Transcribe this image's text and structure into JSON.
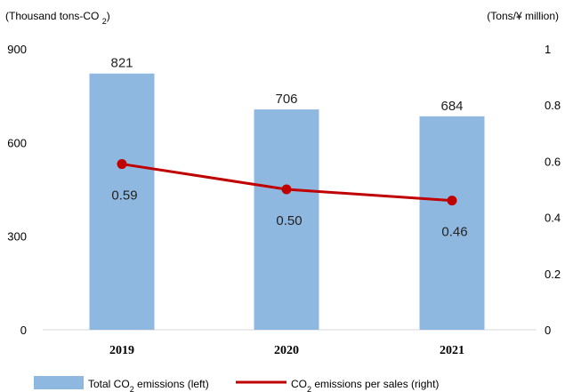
{
  "chart_data": {
    "type": "bar",
    "categories": [
      "2019",
      "2020",
      "2021"
    ],
    "series": [
      {
        "name": "Total CO2 emissions (left)",
        "kind": "bar",
        "axis": "left",
        "values": [
          821,
          706,
          684
        ],
        "labels": [
          "821",
          "706",
          "684"
        ],
        "color": "#8fb8e0"
      },
      {
        "name": "CO2 emissions per sales (right)",
        "kind": "line",
        "axis": "right",
        "values": [
          0.59,
          0.5,
          0.46
        ],
        "labels": [
          "0.59",
          "0.50",
          "0.46"
        ],
        "color": "#c00000"
      }
    ],
    "ylabel_left": "(Thousand tons-CO2)",
    "ylabel_right": "(Tons/¥ million)",
    "ylim_left": [
      0,
      900
    ],
    "ylim_right": [
      0,
      1
    ],
    "yticks_left": [
      "0",
      "300",
      "600",
      "900"
    ],
    "yticks_right": [
      "0",
      "0.2",
      "0.4",
      "0.6",
      "0.8",
      "1"
    ],
    "grid": false,
    "legend_position": "bottom"
  }
}
